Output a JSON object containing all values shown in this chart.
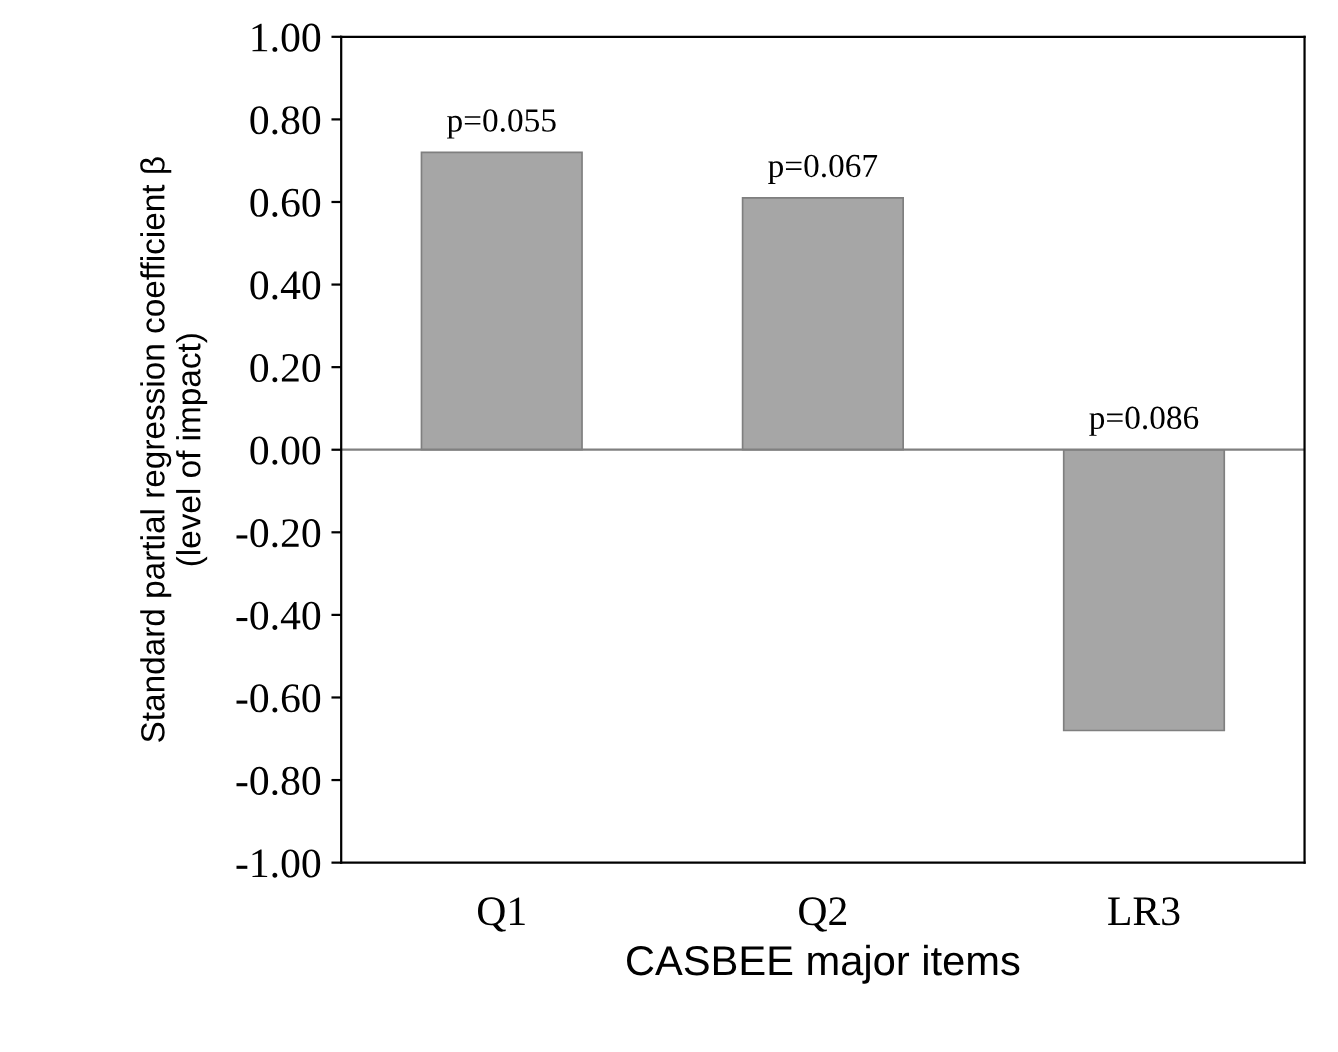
{
  "chart_data": {
    "type": "bar",
    "xlabel": "CASBEE major items",
    "ylabel": "Standard partial regression coefficient β\n(level of impact)",
    "categories": [
      "Q1",
      "Q2",
      "LR3"
    ],
    "values": [
      0.72,
      0.61,
      -0.68
    ],
    "color": "#a6a6a6",
    "ylim": [
      -1.0,
      1.0
    ],
    "yticks": [
      {
        "value": -1.0,
        "label": "-1.00"
      },
      {
        "value": -0.8,
        "label": "-0.80"
      },
      {
        "value": -0.6,
        "label": "-0.60"
      },
      {
        "value": -0.4,
        "label": "-0.40"
      },
      {
        "value": -0.2,
        "label": "-0.20"
      },
      {
        "value": 0,
        "label": "0.00"
      },
      {
        "value": 0.2,
        "label": "0.20"
      },
      {
        "value": 0.4,
        "label": "0.40"
      },
      {
        "value": 0.6,
        "label": "0.60"
      },
      {
        "value": 0.8,
        "label": "0.80"
      },
      {
        "value": 1.0,
        "label": "1.00"
      }
    ],
    "annotations": [
      {
        "text": "p=0.055",
        "x": "Q1",
        "y": 0.72
      },
      {
        "text": "p=0.067",
        "x": "Q2",
        "y": 0.61
      },
      {
        "text": "p=0.086",
        "x": "LR3",
        "y": 0
      }
    ]
  }
}
